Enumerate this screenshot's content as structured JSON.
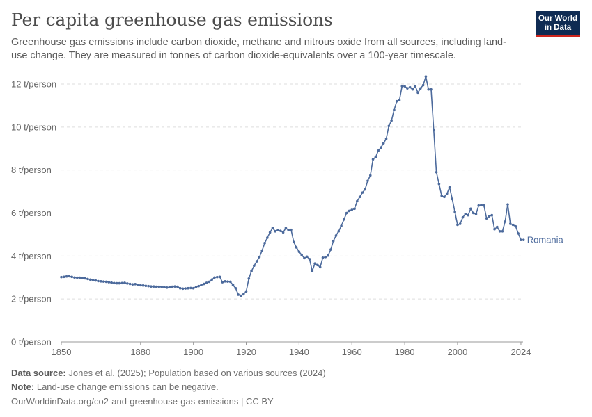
{
  "header": {
    "title": "Per capita greenhouse gas emissions",
    "subtitle": "Greenhouse gas emissions include carbon dioxide, methane and nitrous oxide from all sources, including land-use change. They are measured in tonnes of carbon dioxide-equivalents over a 100-year timescale."
  },
  "logo": {
    "line1": "Our World",
    "line2": "in Data",
    "bg_color": "#0f2b53",
    "accent_color": "#ce261e"
  },
  "footer": {
    "source_label": "Data source:",
    "source_text": "Jones et al. (2025); Population based on various sources (2024)",
    "note_label": "Note:",
    "note_text": "Land-use change emissions can be negative.",
    "url_text": "OurWorldinData.org/co2-and-greenhouse-gas-emissions | CC BY"
  },
  "chart_data": {
    "type": "line",
    "title": "Per capita greenhouse gas emissions",
    "xlabel": "",
    "ylabel": "",
    "xlim": [
      1850,
      2024
    ],
    "ylim": [
      0,
      12
    ],
    "grid": true,
    "legend": "right-end-label",
    "x_ticks": [
      {
        "value": 1850,
        "label": "1850"
      },
      {
        "value": 1880,
        "label": "1880"
      },
      {
        "value": 1900,
        "label": "1900"
      },
      {
        "value": 1920,
        "label": "1920"
      },
      {
        "value": 1940,
        "label": "1940"
      },
      {
        "value": 1960,
        "label": "1960"
      },
      {
        "value": 1980,
        "label": "1980"
      },
      {
        "value": 2000,
        "label": "2000"
      },
      {
        "value": 2024,
        "label": "2024"
      }
    ],
    "y_ticks": [
      {
        "value": 0,
        "label": "0 t/person"
      },
      {
        "value": 2,
        "label": "2 t/person"
      },
      {
        "value": 4,
        "label": "4 t/person"
      },
      {
        "value": 6,
        "label": "6 t/person"
      },
      {
        "value": 8,
        "label": "8 t/person"
      },
      {
        "value": 10,
        "label": "10 t/person"
      },
      {
        "value": 12,
        "label": "12 t/person"
      }
    ],
    "series": [
      {
        "name": "Romania",
        "color": "#4c6a9c",
        "points": [
          [
            1850,
            3.02
          ],
          [
            1851,
            3.03
          ],
          [
            1852,
            3.05
          ],
          [
            1853,
            3.06
          ],
          [
            1854,
            3.03
          ],
          [
            1855,
            3.0
          ],
          [
            1856,
            2.99
          ],
          [
            1857,
            2.99
          ],
          [
            1858,
            2.97
          ],
          [
            1859,
            2.96
          ],
          [
            1860,
            2.93
          ],
          [
            1861,
            2.9
          ],
          [
            1862,
            2.88
          ],
          [
            1863,
            2.86
          ],
          [
            1864,
            2.83
          ],
          [
            1865,
            2.82
          ],
          [
            1866,
            2.81
          ],
          [
            1867,
            2.8
          ],
          [
            1868,
            2.78
          ],
          [
            1869,
            2.76
          ],
          [
            1870,
            2.74
          ],
          [
            1871,
            2.73
          ],
          [
            1872,
            2.73
          ],
          [
            1873,
            2.74
          ],
          [
            1874,
            2.75
          ],
          [
            1875,
            2.72
          ],
          [
            1876,
            2.7
          ],
          [
            1877,
            2.68
          ],
          [
            1878,
            2.69
          ],
          [
            1879,
            2.66
          ],
          [
            1880,
            2.64
          ],
          [
            1881,
            2.63
          ],
          [
            1882,
            2.61
          ],
          [
            1883,
            2.6
          ],
          [
            1884,
            2.58
          ],
          [
            1885,
            2.58
          ],
          [
            1886,
            2.57
          ],
          [
            1887,
            2.57
          ],
          [
            1888,
            2.56
          ],
          [
            1889,
            2.55
          ],
          [
            1890,
            2.53
          ],
          [
            1891,
            2.55
          ],
          [
            1892,
            2.57
          ],
          [
            1893,
            2.58
          ],
          [
            1894,
            2.57
          ],
          [
            1895,
            2.5
          ],
          [
            1896,
            2.48
          ],
          [
            1897,
            2.49
          ],
          [
            1898,
            2.5
          ],
          [
            1899,
            2.51
          ],
          [
            1900,
            2.5
          ],
          [
            1901,
            2.55
          ],
          [
            1902,
            2.6
          ],
          [
            1903,
            2.65
          ],
          [
            1904,
            2.7
          ],
          [
            1905,
            2.75
          ],
          [
            1906,
            2.8
          ],
          [
            1907,
            2.9
          ],
          [
            1908,
            3.0
          ],
          [
            1909,
            3.02
          ],
          [
            1910,
            3.03
          ],
          [
            1911,
            2.78
          ],
          [
            1912,
            2.82
          ],
          [
            1913,
            2.81
          ],
          [
            1914,
            2.8
          ],
          [
            1915,
            2.65
          ],
          [
            1916,
            2.5
          ],
          [
            1917,
            2.2
          ],
          [
            1918,
            2.15
          ],
          [
            1919,
            2.22
          ],
          [
            1920,
            2.35
          ],
          [
            1921,
            2.95
          ],
          [
            1922,
            3.3
          ],
          [
            1923,
            3.55
          ],
          [
            1924,
            3.75
          ],
          [
            1925,
            3.95
          ],
          [
            1926,
            4.25
          ],
          [
            1927,
            4.6
          ],
          [
            1928,
            4.85
          ],
          [
            1929,
            5.1
          ],
          [
            1930,
            5.3
          ],
          [
            1931,
            5.15
          ],
          [
            1932,
            5.2
          ],
          [
            1933,
            5.17
          ],
          [
            1934,
            5.1
          ],
          [
            1935,
            5.3
          ],
          [
            1936,
            5.2
          ],
          [
            1937,
            5.22
          ],
          [
            1938,
            4.65
          ],
          [
            1939,
            4.4
          ],
          [
            1940,
            4.2
          ],
          [
            1941,
            4.05
          ],
          [
            1942,
            3.9
          ],
          [
            1943,
            3.97
          ],
          [
            1944,
            3.85
          ],
          [
            1945,
            3.3
          ],
          [
            1946,
            3.65
          ],
          [
            1947,
            3.58
          ],
          [
            1948,
            3.48
          ],
          [
            1949,
            3.92
          ],
          [
            1950,
            3.95
          ],
          [
            1951,
            4.02
          ],
          [
            1952,
            4.3
          ],
          [
            1953,
            4.7
          ],
          [
            1954,
            4.95
          ],
          [
            1955,
            5.15
          ],
          [
            1956,
            5.4
          ],
          [
            1957,
            5.7
          ],
          [
            1958,
            6.0
          ],
          [
            1959,
            6.1
          ],
          [
            1960,
            6.15
          ],
          [
            1961,
            6.2
          ],
          [
            1962,
            6.55
          ],
          [
            1963,
            6.75
          ],
          [
            1964,
            6.95
          ],
          [
            1965,
            7.1
          ],
          [
            1966,
            7.5
          ],
          [
            1967,
            7.75
          ],
          [
            1968,
            8.5
          ],
          [
            1969,
            8.6
          ],
          [
            1970,
            8.9
          ],
          [
            1971,
            9.05
          ],
          [
            1972,
            9.25
          ],
          [
            1973,
            9.45
          ],
          [
            1974,
            10.05
          ],
          [
            1975,
            10.3
          ],
          [
            1976,
            10.8
          ],
          [
            1977,
            11.2
          ],
          [
            1978,
            11.25
          ],
          [
            1979,
            11.9
          ],
          [
            1980,
            11.9
          ],
          [
            1981,
            11.8
          ],
          [
            1982,
            11.85
          ],
          [
            1983,
            11.75
          ],
          [
            1984,
            11.9
          ],
          [
            1985,
            11.6
          ],
          [
            1986,
            11.8
          ],
          [
            1987,
            11.95
          ],
          [
            1988,
            12.35
          ],
          [
            1989,
            11.75
          ],
          [
            1990,
            11.75
          ],
          [
            1991,
            9.85
          ],
          [
            1992,
            7.9
          ],
          [
            1993,
            7.35
          ],
          [
            1994,
            6.8
          ],
          [
            1995,
            6.75
          ],
          [
            1996,
            6.9
          ],
          [
            1997,
            7.2
          ],
          [
            1998,
            6.65
          ],
          [
            1999,
            6.05
          ],
          [
            2000,
            5.45
          ],
          [
            2001,
            5.5
          ],
          [
            2002,
            5.8
          ],
          [
            2003,
            5.95
          ],
          [
            2004,
            5.9
          ],
          [
            2005,
            6.2
          ],
          [
            2006,
            6.0
          ],
          [
            2007,
            5.95
          ],
          [
            2008,
            6.35
          ],
          [
            2009,
            6.38
          ],
          [
            2010,
            6.35
          ],
          [
            2011,
            5.75
          ],
          [
            2012,
            5.85
          ],
          [
            2013,
            5.9
          ],
          [
            2014,
            5.25
          ],
          [
            2015,
            5.35
          ],
          [
            2016,
            5.15
          ],
          [
            2017,
            5.15
          ],
          [
            2018,
            5.6
          ],
          [
            2019,
            6.4
          ],
          [
            2020,
            5.5
          ],
          [
            2021,
            5.45
          ],
          [
            2022,
            5.38
          ],
          [
            2023,
            5.05
          ],
          [
            2024,
            4.75
          ],
          [
            2025,
            4.75
          ]
        ]
      }
    ]
  }
}
